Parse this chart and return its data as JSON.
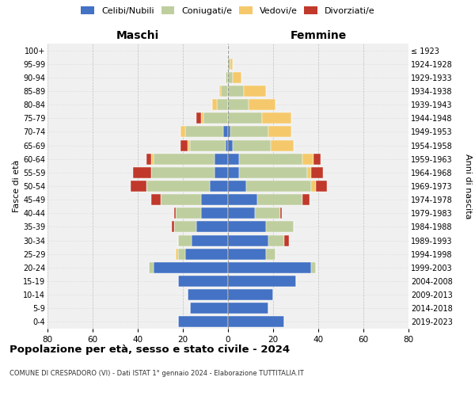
{
  "age_groups": [
    "0-4",
    "5-9",
    "10-14",
    "15-19",
    "20-24",
    "25-29",
    "30-34",
    "35-39",
    "40-44",
    "45-49",
    "50-54",
    "55-59",
    "60-64",
    "65-69",
    "70-74",
    "75-79",
    "80-84",
    "85-89",
    "90-94",
    "95-99",
    "100+"
  ],
  "birth_years": [
    "2019-2023",
    "2014-2018",
    "2009-2013",
    "2004-2008",
    "1999-2003",
    "1994-1998",
    "1989-1993",
    "1984-1988",
    "1979-1983",
    "1974-1978",
    "1969-1973",
    "1964-1968",
    "1959-1963",
    "1954-1958",
    "1949-1953",
    "1944-1948",
    "1939-1943",
    "1934-1938",
    "1929-1933",
    "1924-1928",
    "≤ 1923"
  ],
  "colors": {
    "celibi": "#4472C4",
    "coniugati": "#BFCE9E",
    "vedovi": "#F5C96B",
    "divorziati": "#C0392B"
  },
  "males": {
    "celibi": [
      22,
      17,
      18,
      22,
      33,
      19,
      16,
      14,
      12,
      12,
      8,
      6,
      6,
      1,
      2,
      0,
      0,
      0,
      0,
      0,
      0
    ],
    "coniugati": [
      0,
      0,
      0,
      0,
      2,
      3,
      6,
      10,
      11,
      18,
      28,
      28,
      27,
      16,
      17,
      11,
      5,
      3,
      1,
      0,
      0
    ],
    "vedovi": [
      0,
      0,
      0,
      0,
      0,
      1,
      0,
      0,
      0,
      0,
      0,
      0,
      1,
      1,
      2,
      1,
      2,
      1,
      0,
      0,
      0
    ],
    "divorziati": [
      0,
      0,
      0,
      0,
      0,
      0,
      0,
      1,
      1,
      4,
      7,
      8,
      2,
      3,
      0,
      2,
      0,
      0,
      0,
      0,
      0
    ]
  },
  "females": {
    "celibi": [
      25,
      18,
      20,
      30,
      37,
      17,
      18,
      17,
      12,
      13,
      8,
      5,
      5,
      2,
      1,
      0,
      0,
      0,
      0,
      0,
      0
    ],
    "coniugati": [
      0,
      0,
      0,
      0,
      2,
      4,
      7,
      12,
      11,
      20,
      29,
      30,
      28,
      17,
      17,
      15,
      9,
      7,
      2,
      1,
      0
    ],
    "vedovi": [
      0,
      0,
      0,
      0,
      0,
      0,
      0,
      0,
      0,
      0,
      2,
      2,
      5,
      10,
      10,
      13,
      12,
      10,
      4,
      1,
      0
    ],
    "divorziati": [
      0,
      0,
      0,
      0,
      0,
      0,
      2,
      0,
      1,
      3,
      5,
      5,
      3,
      0,
      0,
      0,
      0,
      0,
      0,
      0,
      0
    ]
  },
  "xlim": 80,
  "title": "Popolazione per età, sesso e stato civile - 2024",
  "subtitle": "COMUNE DI CRESPADORO (VI) - Dati ISTAT 1° gennaio 2024 - Elaborazione TUTTITALIA.IT",
  "xlabel_left": "Maschi",
  "xlabel_right": "Femmine",
  "ylabel_left": "Fasce di età",
  "ylabel_right": "Anni di nascita",
  "legend_labels": [
    "Celibi/Nubili",
    "Coniugati/e",
    "Vedovi/e",
    "Divorziati/e"
  ],
  "bg_color": "#f0f0f0",
  "grid_color": "#cccccc"
}
